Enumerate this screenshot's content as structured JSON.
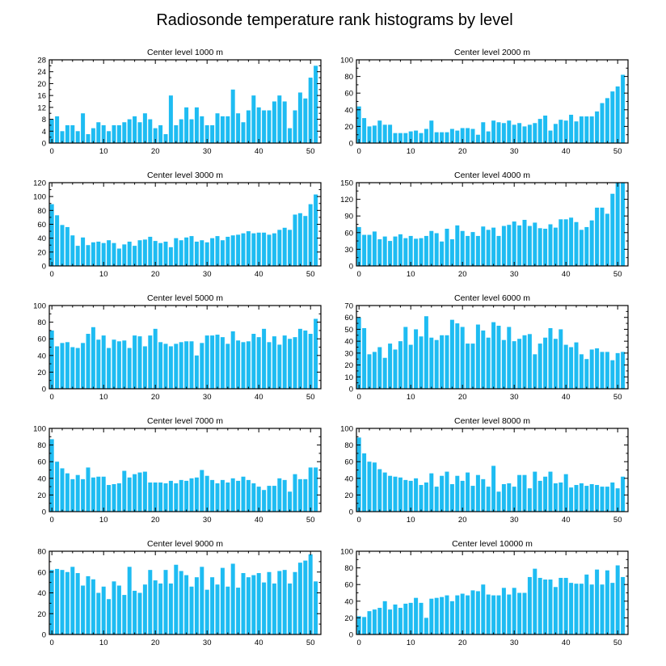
{
  "figure": {
    "title": "Radiosonde temperature rank histograms by level",
    "bar_color": "#1EBCF2"
  },
  "chart_data": [
    {
      "type": "bar",
      "title": "Center level 1000 m",
      "x": [
        0,
        1,
        2,
        3,
        4,
        5,
        6,
        7,
        8,
        9,
        10,
        11,
        12,
        13,
        14,
        15,
        16,
        17,
        18,
        19,
        20,
        21,
        22,
        23,
        24,
        25,
        26,
        27,
        28,
        29,
        30,
        31,
        32,
        33,
        34,
        35,
        36,
        37,
        38,
        39,
        40,
        41,
        42,
        43,
        44,
        45,
        46,
        47,
        48,
        49,
        50,
        51
      ],
      "values": [
        8,
        9,
        4,
        6,
        6,
        4,
        10,
        3,
        5,
        7,
        6,
        4,
        6,
        6,
        7,
        8,
        9,
        7,
        10,
        8,
        5,
        6,
        3,
        16,
        6,
        8,
        12,
        8,
        12,
        9,
        6,
        6,
        10,
        9,
        9,
        18,
        10,
        7,
        11,
        16,
        12,
        11,
        11,
        14,
        16,
        14,
        5,
        11,
        17,
        15,
        22,
        26
      ],
      "xlim": [
        -0.5,
        52
      ],
      "xticks": [
        0,
        10,
        20,
        30,
        40,
        50
      ],
      "ylim": [
        0,
        28
      ],
      "yticks": [
        0,
        4,
        8,
        12,
        16,
        20,
        24,
        28
      ],
      "ytick_labels": [
        "0",
        "4",
        "8",
        "12",
        "16",
        "20",
        "24",
        "28"
      ],
      "yaxis_side": "left"
    },
    {
      "type": "bar",
      "title": "Center level 2000 m",
      "x": [
        0,
        1,
        2,
        3,
        4,
        5,
        6,
        7,
        8,
        9,
        10,
        11,
        12,
        13,
        14,
        15,
        16,
        17,
        18,
        19,
        20,
        21,
        22,
        23,
        24,
        25,
        26,
        27,
        28,
        29,
        30,
        31,
        32,
        33,
        34,
        35,
        36,
        37,
        38,
        39,
        40,
        41,
        42,
        43,
        44,
        45,
        46,
        47,
        48,
        49,
        50,
        51
      ],
      "values": [
        44,
        30,
        20,
        21,
        27,
        22,
        22,
        12,
        12,
        12,
        14,
        15,
        12,
        17,
        27,
        13,
        13,
        13,
        17,
        15,
        18,
        18,
        17,
        10,
        25,
        14,
        27,
        25,
        24,
        27,
        22,
        24,
        20,
        22,
        24,
        29,
        33,
        15,
        23,
        28,
        27,
        34,
        26,
        32,
        32,
        32,
        38,
        48,
        54,
        62,
        68,
        82
      ],
      "xlim": [
        -0.5,
        52
      ],
      "xticks": [
        0,
        10,
        20,
        30,
        40,
        50
      ],
      "ylim": [
        0,
        100
      ],
      "yticks": [
        0,
        20,
        40,
        60,
        80,
        100
      ],
      "ytick_labels": [
        "0",
        "20",
        "40",
        "60",
        "80",
        "100"
      ],
      "yaxis_side": "left"
    },
    {
      "type": "bar",
      "title": "Center level 3000 m",
      "x": [
        0,
        1,
        2,
        3,
        4,
        5,
        6,
        7,
        8,
        9,
        10,
        11,
        12,
        13,
        14,
        15,
        16,
        17,
        18,
        19,
        20,
        21,
        22,
        23,
        24,
        25,
        26,
        27,
        28,
        29,
        30,
        31,
        32,
        33,
        34,
        35,
        36,
        37,
        38,
        39,
        40,
        41,
        42,
        43,
        44,
        45,
        46,
        47,
        48,
        49,
        50,
        51
      ],
      "values": [
        89,
        73,
        59,
        56,
        44,
        29,
        41,
        30,
        34,
        35,
        33,
        37,
        33,
        25,
        31,
        35,
        29,
        37,
        38,
        42,
        36,
        33,
        35,
        27,
        40,
        37,
        41,
        43,
        35,
        37,
        34,
        40,
        43,
        37,
        42,
        44,
        45,
        47,
        50,
        47,
        48,
        48,
        45,
        47,
        52,
        55,
        52,
        74,
        76,
        72,
        89,
        103
      ],
      "xlim": [
        -0.5,
        52
      ],
      "xticks": [
        0,
        10,
        20,
        30,
        40,
        50
      ],
      "ylim": [
        0,
        120
      ],
      "yticks": [
        0,
        20,
        40,
        60,
        80,
        100,
        120
      ],
      "ytick_labels": [
        "0",
        "20",
        "40",
        "60",
        "80",
        "100",
        "120"
      ],
      "yaxis_side": "left"
    },
    {
      "type": "bar",
      "title": "Center level 4000 m",
      "x": [
        0,
        1,
        2,
        3,
        4,
        5,
        6,
        7,
        8,
        9,
        10,
        11,
        12,
        13,
        14,
        15,
        16,
        17,
        18,
        19,
        20,
        21,
        22,
        23,
        24,
        25,
        26,
        27,
        28,
        29,
        30,
        31,
        32,
        33,
        34,
        35,
        36,
        37,
        38,
        39,
        40,
        41,
        42,
        43,
        44,
        45,
        46,
        47,
        48,
        49,
        50,
        51
      ],
      "values": [
        70,
        56,
        56,
        62,
        48,
        53,
        45,
        53,
        57,
        50,
        54,
        49,
        50,
        54,
        63,
        59,
        44,
        67,
        48,
        73,
        63,
        54,
        61,
        54,
        71,
        65,
        69,
        54,
        72,
        74,
        80,
        73,
        83,
        72,
        78,
        68,
        67,
        75,
        69,
        84,
        84,
        87,
        79,
        65,
        70,
        82,
        105,
        105,
        94,
        130,
        150,
        150
      ],
      "xlim": [
        -0.5,
        52
      ],
      "xticks": [
        0,
        10,
        20,
        30,
        40,
        50
      ],
      "ylim": [
        0,
        150
      ],
      "yticks": [
        0,
        30,
        60,
        90,
        120,
        150
      ],
      "ytick_labels": [
        "0",
        "30",
        "60",
        "90",
        "120",
        "150"
      ],
      "yaxis_side": "left"
    },
    {
      "type": "bar",
      "title": "Center level 5000 m",
      "x": [
        0,
        1,
        2,
        3,
        4,
        5,
        6,
        7,
        8,
        9,
        10,
        11,
        12,
        13,
        14,
        15,
        16,
        17,
        18,
        19,
        20,
        21,
        22,
        23,
        24,
        25,
        26,
        27,
        28,
        29,
        30,
        31,
        32,
        33,
        34,
        35,
        36,
        37,
        38,
        39,
        40,
        41,
        42,
        43,
        44,
        45,
        46,
        47,
        48,
        49,
        50,
        51
      ],
      "values": [
        70,
        51,
        55,
        56,
        50,
        49,
        55,
        66,
        74,
        59,
        64,
        49,
        59,
        57,
        58,
        49,
        64,
        63,
        51,
        64,
        72,
        56,
        54,
        51,
        54,
        56,
        57,
        57,
        40,
        55,
        64,
        64,
        65,
        62,
        54,
        69,
        58,
        56,
        57,
        66,
        62,
        72,
        56,
        63,
        53,
        64,
        60,
        62,
        72,
        70,
        66,
        84
      ],
      "xlim": [
        -0.5,
        52
      ],
      "xticks": [
        0,
        10,
        20,
        30,
        40,
        50
      ],
      "ylim": [
        0,
        100
      ],
      "yticks": [
        0,
        20,
        40,
        60,
        80,
        100
      ],
      "ytick_labels": [
        "0",
        "20",
        "40",
        "60",
        "80",
        "100"
      ],
      "yaxis_side": "left"
    },
    {
      "type": "bar",
      "title": "Center level 6000 m",
      "x": [
        0,
        1,
        2,
        3,
        4,
        5,
        6,
        7,
        8,
        9,
        10,
        11,
        12,
        13,
        14,
        15,
        16,
        17,
        18,
        19,
        20,
        21,
        22,
        23,
        24,
        25,
        26,
        27,
        28,
        29,
        30,
        31,
        32,
        33,
        34,
        35,
        36,
        37,
        38,
        39,
        40,
        41,
        42,
        43,
        44,
        45,
        46,
        47,
        48,
        49,
        50,
        51
      ],
      "values": [
        60,
        51,
        29,
        31,
        35,
        26,
        38,
        33,
        40,
        52,
        37,
        50,
        44,
        61,
        43,
        41,
        45,
        45,
        58,
        55,
        52,
        38,
        38,
        54,
        49,
        43,
        56,
        53,
        41,
        52,
        40,
        42,
        45,
        46,
        29,
        38,
        43,
        51,
        42,
        50,
        37,
        35,
        39,
        29,
        25,
        33,
        34,
        31,
        31,
        24,
        30,
        31
      ],
      "xlim": [
        -0.5,
        52
      ],
      "xticks": [
        0,
        10,
        20,
        30,
        40,
        50
      ],
      "ylim": [
        0,
        70
      ],
      "yticks": [
        0,
        10,
        20,
        30,
        40,
        50,
        60,
        70
      ],
      "ytick_labels": [
        "0",
        "10",
        "20",
        "30",
        "40",
        "50",
        "60",
        "70"
      ],
      "yaxis_side": "left"
    },
    {
      "type": "bar",
      "title": "Center level 7000 m",
      "x": [
        0,
        1,
        2,
        3,
        4,
        5,
        6,
        7,
        8,
        9,
        10,
        11,
        12,
        13,
        14,
        15,
        16,
        17,
        18,
        19,
        20,
        21,
        22,
        23,
        24,
        25,
        26,
        27,
        28,
        29,
        30,
        31,
        32,
        33,
        34,
        35,
        36,
        37,
        38,
        39,
        40,
        41,
        42,
        43,
        44,
        45,
        46,
        47,
        48,
        49,
        50,
        51
      ],
      "values": [
        87,
        60,
        52,
        46,
        39,
        44,
        39,
        53,
        41,
        42,
        42,
        32,
        33,
        34,
        49,
        41,
        45,
        47,
        48,
        35,
        35,
        35,
        34,
        37,
        34,
        38,
        37,
        40,
        41,
        50,
        43,
        38,
        34,
        38,
        35,
        40,
        37,
        42,
        38,
        34,
        30,
        26,
        31,
        31,
        40,
        38,
        24,
        45,
        39,
        39,
        53,
        53
      ],
      "xlim": [
        -0.5,
        52
      ],
      "xticks": [
        0,
        10,
        20,
        30,
        40,
        50
      ],
      "ylim": [
        0,
        100
      ],
      "yticks": [
        0,
        20,
        40,
        60,
        80,
        100
      ],
      "ytick_labels": [
        "0",
        "20",
        "40",
        "60",
        "80",
        "100"
      ],
      "yaxis_side": "left"
    },
    {
      "type": "bar",
      "title": "Center level 8000 m",
      "x": [
        0,
        1,
        2,
        3,
        4,
        5,
        6,
        7,
        8,
        9,
        10,
        11,
        12,
        13,
        14,
        15,
        16,
        17,
        18,
        19,
        20,
        21,
        22,
        23,
        24,
        25,
        26,
        27,
        28,
        29,
        30,
        31,
        32,
        33,
        34,
        35,
        36,
        37,
        38,
        39,
        40,
        41,
        42,
        43,
        44,
        45,
        46,
        47,
        48,
        49,
        50,
        51
      ],
      "values": [
        89,
        70,
        60,
        59,
        51,
        47,
        43,
        42,
        41,
        38,
        37,
        40,
        32,
        35,
        46,
        30,
        43,
        48,
        33,
        43,
        37,
        47,
        31,
        44,
        39,
        30,
        55,
        24,
        33,
        34,
        30,
        44,
        44,
        28,
        48,
        37,
        42,
        48,
        34,
        35,
        45,
        29,
        32,
        34,
        31,
        33,
        32,
        30,
        30,
        35,
        28,
        42
      ],
      "xlim": [
        -0.5,
        52
      ],
      "xticks": [
        0,
        10,
        20,
        30,
        40,
        50
      ],
      "ylim": [
        0,
        100
      ],
      "yticks": [
        0,
        20,
        40,
        60,
        80,
        100
      ],
      "ytick_labels": [
        "0",
        "20",
        "40",
        "60",
        "80",
        "100"
      ],
      "yaxis_side": "left"
    },
    {
      "type": "bar",
      "title": "Center level 9000 m",
      "x": [
        0,
        1,
        2,
        3,
        4,
        5,
        6,
        7,
        8,
        9,
        10,
        11,
        12,
        13,
        14,
        15,
        16,
        17,
        18,
        19,
        20,
        21,
        22,
        23,
        24,
        25,
        26,
        27,
        28,
        29,
        30,
        31,
        32,
        33,
        34,
        35,
        36,
        37,
        38,
        39,
        40,
        41,
        42,
        43,
        44,
        45,
        46,
        47,
        48,
        49,
        50,
        51
      ],
      "values": [
        62,
        63,
        62,
        60,
        65,
        59,
        47,
        56,
        53,
        40,
        46,
        34,
        51,
        47,
        38,
        65,
        42,
        40,
        48,
        62,
        52,
        49,
        62,
        49,
        67,
        61,
        57,
        46,
        55,
        65,
        43,
        55,
        48,
        64,
        46,
        68,
        45,
        59,
        55,
        57,
        59,
        50,
        60,
        49,
        61,
        62,
        49,
        60,
        69,
        71,
        77,
        51
      ],
      "xlim": [
        -0.5,
        52
      ],
      "xticks": [
        0,
        10,
        20,
        30,
        40,
        50
      ],
      "ylim": [
        0,
        80
      ],
      "yticks": [
        0,
        20,
        40,
        60,
        80
      ],
      "ytick_labels": [
        "0",
        "20",
        "40",
        "60",
        "80"
      ],
      "yaxis_side": "left"
    },
    {
      "type": "bar",
      "title": "Center level 10000 m",
      "x": [
        0,
        1,
        2,
        3,
        4,
        5,
        6,
        7,
        8,
        9,
        10,
        11,
        12,
        13,
        14,
        15,
        16,
        17,
        18,
        19,
        20,
        21,
        22,
        23,
        24,
        25,
        26,
        27,
        28,
        29,
        30,
        31,
        32,
        33,
        34,
        35,
        36,
        37,
        38,
        39,
        40,
        41,
        42,
        43,
        44,
        45,
        46,
        47,
        48,
        49,
        50,
        51
      ],
      "values": [
        22,
        21,
        28,
        30,
        32,
        40,
        30,
        36,
        32,
        37,
        38,
        44,
        38,
        20,
        43,
        44,
        45,
        47,
        40,
        47,
        49,
        47,
        53,
        52,
        60,
        48,
        47,
        47,
        56,
        48,
        56,
        50,
        50,
        69,
        79,
        68,
        66,
        66,
        57,
        68,
        68,
        62,
        61,
        61,
        72,
        60,
        78,
        60,
        77,
        62,
        83,
        69
      ],
      "xlim": [
        -0.5,
        52
      ],
      "xticks": [
        0,
        10,
        20,
        30,
        40,
        50
      ],
      "ylim": [
        0,
        100
      ],
      "yticks": [
        0,
        20,
        40,
        60,
        80,
        100
      ],
      "ytick_labels": [
        "0",
        "20",
        "40",
        "60",
        "80",
        "100"
      ],
      "yaxis_side": "left"
    }
  ]
}
